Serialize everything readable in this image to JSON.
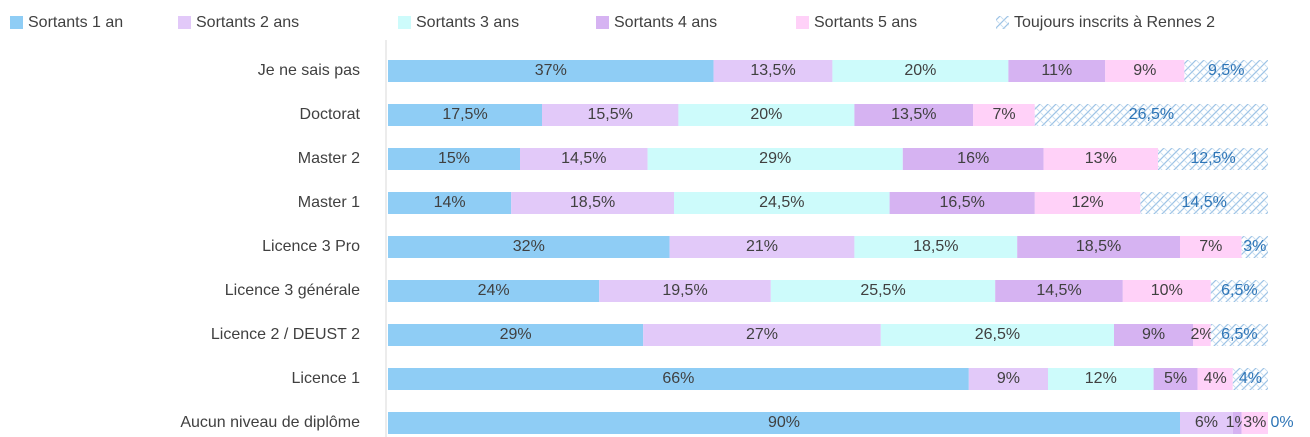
{
  "chart_data": {
    "type": "stacked_barh",
    "categories": [
      "Je ne sais pas",
      "Doctorat",
      "Master 2",
      "Master 1",
      "Licence 3 Pro",
      "Licence 3 générale",
      "Licence 2 / DEUST 2",
      "Licence 1",
      "Aucun niveau de diplôme"
    ],
    "xlim": [
      0,
      100
    ],
    "legend": "top",
    "series": [
      {
        "name": "Sortants 1 an",
        "color": "#8fcdf5",
        "label_color": "#404040",
        "values": [
          37,
          17.5,
          15,
          14,
          32,
          24,
          29,
          66,
          90
        ],
        "value_labels": [
          "37%",
          "17,5%",
          "15%",
          "14%",
          "32%",
          "24%",
          "29%",
          "66%",
          "90%"
        ]
      },
      {
        "name": "Sortants 2 ans",
        "color": "#e2c9f9",
        "label_color": "#404040",
        "values": [
          13.5,
          15.5,
          14.5,
          18.5,
          21,
          19.5,
          27,
          9,
          6
        ],
        "value_labels": [
          "13,5%",
          "15,5%",
          "14,5%",
          "18,5%",
          "21%",
          "19,5%",
          "27%",
          "9%",
          "6%"
        ]
      },
      {
        "name": "Sortants 3 ans",
        "color": "#cdfbfb",
        "label_color": "#404040",
        "values": [
          20,
          20,
          29,
          24.5,
          18.5,
          25.5,
          26.5,
          12,
          0
        ],
        "value_labels": [
          "20%",
          "20%",
          "29%",
          "24,5%",
          "18,5%",
          "25,5%",
          "26,5%",
          "12%",
          null
        ]
      },
      {
        "name": "Sortants 4 ans",
        "color": "#d6b3f2",
        "label_color": "#404040",
        "values": [
          11,
          13.5,
          16,
          16.5,
          18.5,
          14.5,
          9,
          5,
          1
        ],
        "value_labels": [
          "11%",
          "13,5%",
          "16%",
          "16,5%",
          "18,5%",
          "14,5%",
          "9%",
          "5%",
          "1%"
        ]
      },
      {
        "name": "Sortants 5 ans",
        "color": "#ffd1f8",
        "label_color": "#404040",
        "values": [
          9,
          7,
          13,
          12,
          7,
          10,
          2,
          4,
          3
        ],
        "value_labels": [
          "9%",
          "7%",
          "13%",
          "12%",
          "7%",
          "10%",
          "2%",
          "4%",
          "3%"
        ]
      },
      {
        "name": "Toujours inscrits à Rennes 2",
        "color": "#bdd7ee",
        "pattern": "hatch",
        "label_color": "#2e75b6",
        "values": [
          9.5,
          26.5,
          12.5,
          14.5,
          3,
          6.5,
          6.5,
          4,
          0
        ],
        "value_labels": [
          "9,5%",
          "26,5%",
          "12,5%",
          "14,5%",
          "3%",
          "6,5%",
          "6,5%",
          "4%",
          "0%"
        ]
      }
    ]
  }
}
